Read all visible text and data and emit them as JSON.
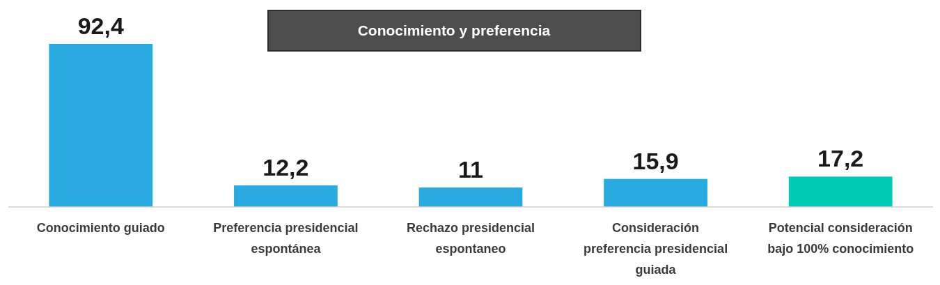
{
  "chart_data": {
    "type": "bar",
    "title": "Conocimiento y preferencia",
    "categories": [
      "Conocimiento guiado",
      "Preferencia presidencial espontánea",
      "Rechazo presidencial espontaneo",
      "Consideración preferencia presidencial guiada",
      "Potencial consideración bajo 100% conocimiento"
    ],
    "values": [
      92.4,
      12.2,
      11,
      15.9,
      17.2
    ],
    "value_labels": [
      "92,4",
      "12,2",
      "11",
      "15,9",
      "17,2"
    ],
    "colors": [
      "#29abe2",
      "#29abe2",
      "#29abe2",
      "#29abe2",
      "#00cbb5"
    ]
  }
}
